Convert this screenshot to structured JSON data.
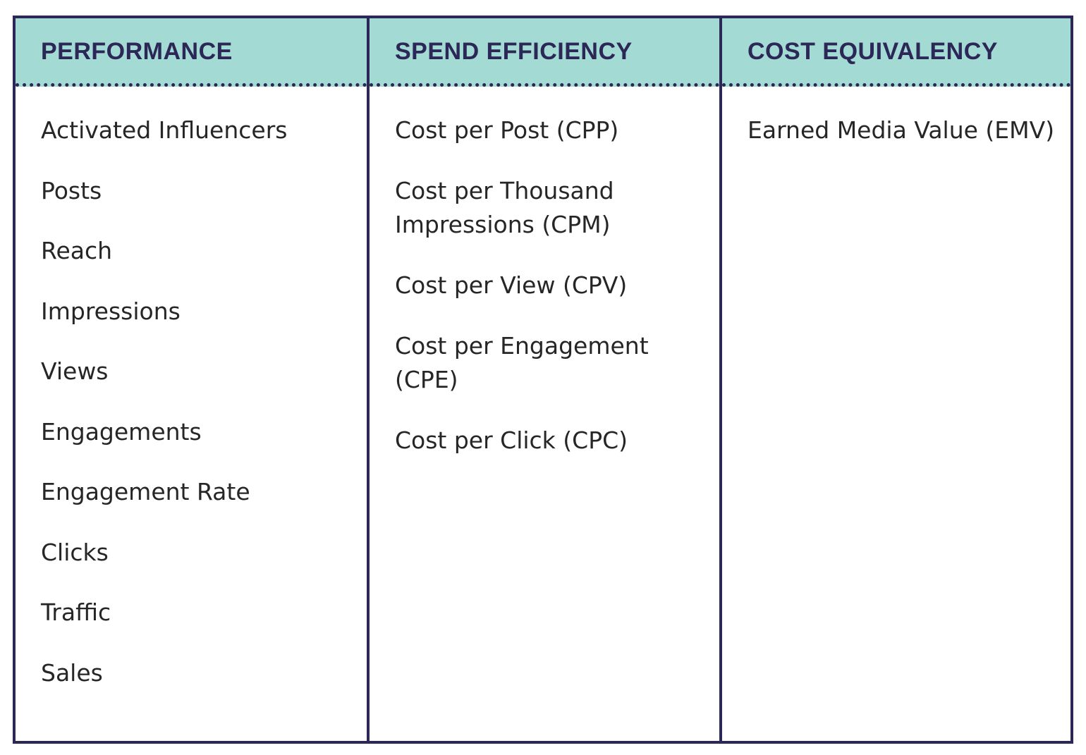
{
  "colors": {
    "border": "#2b2756",
    "header_background": "#a3dad3",
    "header_text": "#2b2756",
    "body_text": "#262626"
  },
  "columns": [
    {
      "heading": "PERFORMANCE",
      "items": [
        "Activated Influencers",
        "Posts",
        "Reach",
        "Impressions",
        "Views",
        "Engagements",
        "Engagement Rate",
        "Clicks",
        "Traffic",
        "Sales"
      ]
    },
    {
      "heading": "SPEND EFFICIENCY",
      "items": [
        "Cost per Post (CPP)",
        "Cost per Thousand Impressions (CPM)",
        "Cost per View (CPV)",
        "Cost per Engagement (CPE)",
        "Cost per Click (CPC)"
      ]
    },
    {
      "heading": "COST EQUIVALENCY",
      "items": [
        "Earned Media Value (EMV)"
      ]
    }
  ]
}
